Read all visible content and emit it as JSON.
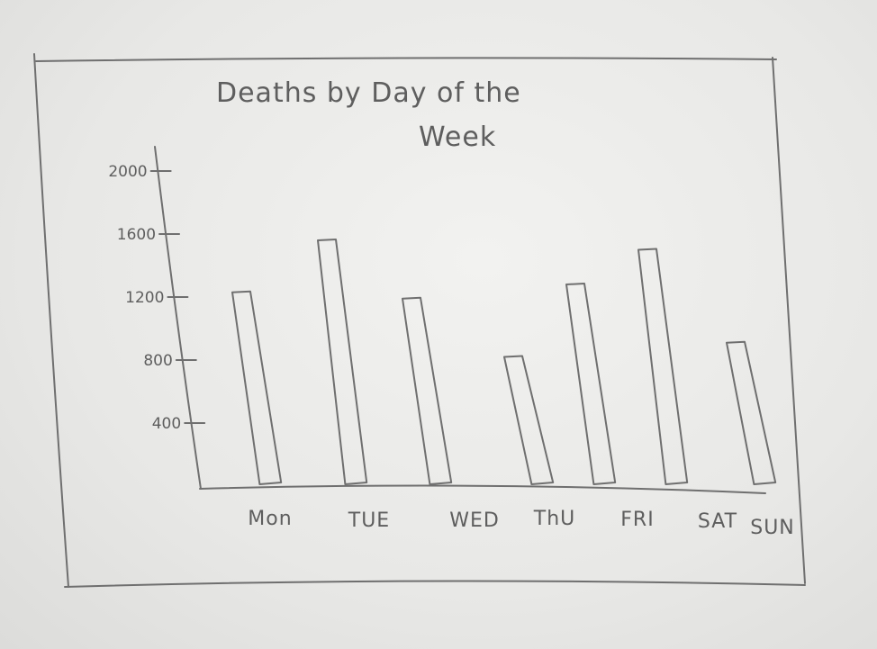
{
  "chart_data": {
    "type": "bar",
    "title": "Deaths by Day of the Week",
    "categories": [
      "Mon",
      "TUE",
      "WED",
      "ThU",
      "FRI",
      "SAT",
      "SUN"
    ],
    "values": [
      1230,
      1560,
      1190,
      820,
      1280,
      1500,
      910
    ],
    "yticks": [
      "400",
      "800",
      "1200",
      "1600",
      "2000"
    ],
    "ylim": [
      0,
      2100
    ],
    "grid": false,
    "legend": "none"
  }
}
